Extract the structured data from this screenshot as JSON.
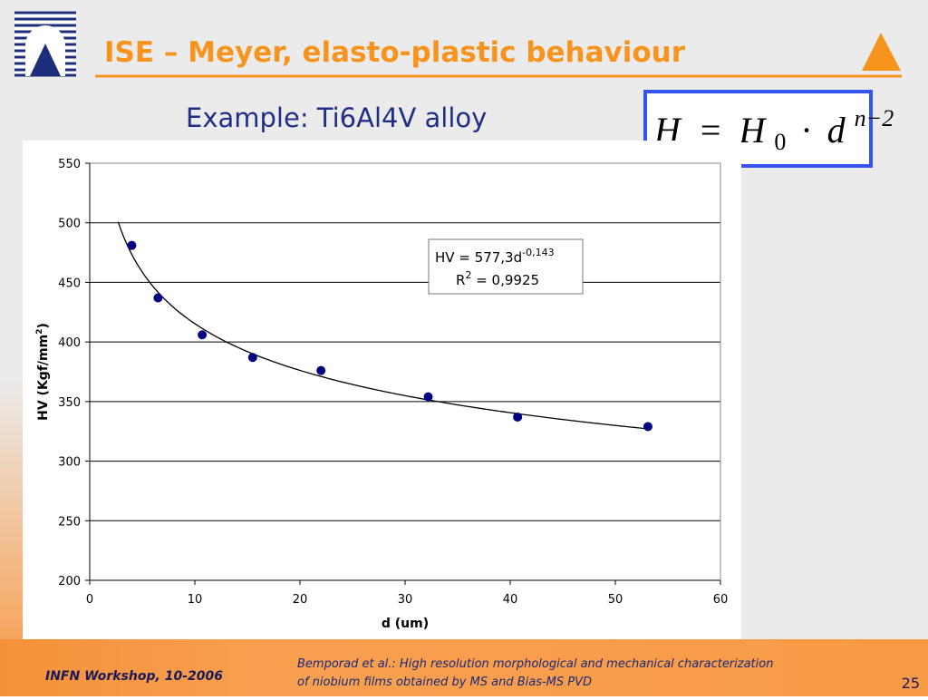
{
  "slide": {
    "title": "ISE – Meyer, elasto-plastic behaviour",
    "subtitle": "Example: Ti6Al4V alloy",
    "formula": {
      "lhs": "H",
      "eq": "=",
      "base": "H",
      "sub": "0",
      "dot": "·",
      "var": "d",
      "sup": "n−2"
    },
    "footer_left": "INFN Workshop, 10-2006",
    "citation": [
      "Bemporad et al.: High resolution morphological and mechanical characterization",
      "of niobium films obtained by MS and Bias-MS PVD"
    ],
    "page": "25"
  },
  "chart_data": {
    "type": "scatter",
    "xlabel": "d (um)",
    "ylabel": {
      "text": "HV (Kgf/mm",
      "sup": "2",
      "close": ")"
    },
    "series": [
      {
        "name": "HV",
        "color": "#000080",
        "x": [
          4,
          6.5,
          10.7,
          15.5,
          22,
          32.2,
          40.7,
          53.1
        ],
        "values": [
          481,
          437,
          406,
          387,
          376,
          354,
          337,
          329
        ]
      }
    ],
    "trendline": {
      "prefix": "HV = ",
      "coefficient": {
        "value": 577.3,
        "label": "577,3"
      },
      "variable": "d",
      "exponent": {
        "value": -0.143,
        "label": "-0,143"
      },
      "x": [
        2.7,
        53.1
      ],
      "r2_name": "R",
      "r2_sup": "2",
      "r2_eq": " = ",
      "r2": {
        "value": 0.9925,
        "label": "0,9925"
      }
    },
    "xlim": [
      0,
      60
    ],
    "xticks": [
      0,
      10,
      20,
      30,
      40,
      50,
      60
    ],
    "ylim": [
      200,
      550
    ],
    "yticks": [
      200,
      250,
      300,
      350,
      400,
      450,
      500,
      550
    ],
    "grid": true
  }
}
